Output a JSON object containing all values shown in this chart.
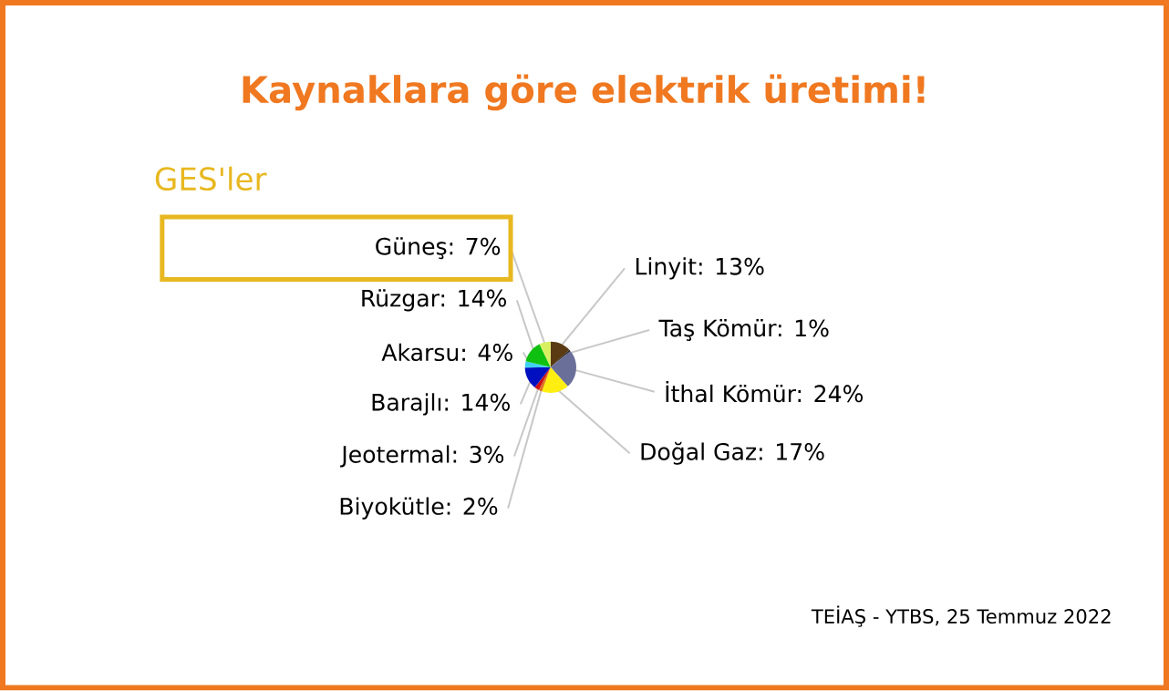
{
  "chart_data": {
    "type": "pie",
    "title": "Kaynaklara göre elektrik üretimi!",
    "categories": [
      "Linyit: 13%",
      "Taş Kömür: 1%",
      "İthal Kömür: 24%",
      "Doğal Gaz: 17%",
      "Biyokütle: 2%",
      "Jeotermal: 3%",
      "Barajlı: 14%",
      "Akarsu: 4%",
      "Rüzgar: 14%",
      "Güneş: 7%"
    ],
    "values": [
      13,
      1,
      24,
      17,
      2,
      3,
      14,
      4,
      14,
      7
    ],
    "colors": [
      "#5a3a12",
      "#2a2a2a",
      "#6a6f9a",
      "#ffee10",
      "#e07020",
      "#cc1010",
      "#0010c0",
      "#40d0f0",
      "#10c010",
      "#d8f060"
    ],
    "annotations": [
      "GES'ler",
      "TEİAŞ - YTBS, 25 Temmuz 2022"
    ]
  }
}
